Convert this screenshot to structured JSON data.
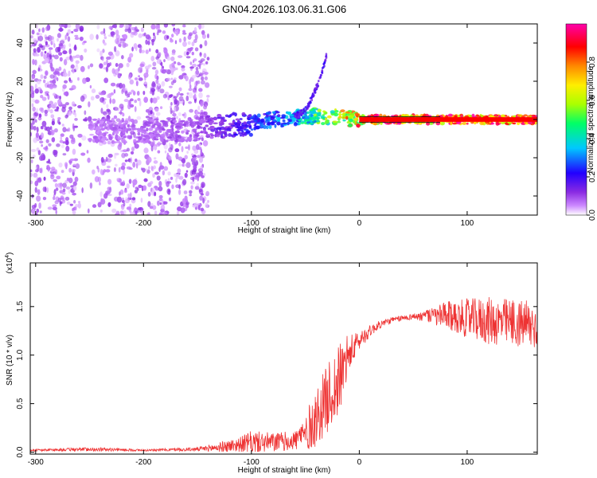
{
  "title": "GN04.2026.103.06.31.G06",
  "chart_data": [
    {
      "type": "heatmap",
      "name": "spectrogram",
      "xlabel": "Height of straight line (km)",
      "ylabel": "Frequency (Hz)",
      "xlim": [
        -305,
        165
      ],
      "ylim": [
        -50,
        50
      ],
      "x_ticks": [
        -300,
        -200,
        -100,
        0,
        100
      ],
      "x_tick_labels": [
        "-300",
        "-200",
        "-100",
        "0",
        "100"
      ],
      "y_ticks": [
        -40,
        -20,
        0,
        20,
        40
      ],
      "y_tick_labels": [
        "-40",
        "-20",
        "0",
        "20",
        "40"
      ],
      "colorbar": {
        "label": "Normalized spectral amplitude",
        "range": [
          0,
          1
        ],
        "ticks": [
          0.0,
          0.2,
          0.4,
          0.6,
          0.8
        ],
        "tick_labels": [
          "0.0",
          "0.2",
          "0.4",
          "0.6",
          "0.8"
        ],
        "colors": [
          "#ffffff",
          "#cc88ff",
          "#8a2be2",
          "#2200ff",
          "#00c8ff",
          "#00ff66",
          "#aaff00",
          "#ffee00",
          "#ff8800",
          "#ff0000",
          "#ff00aa"
        ]
      },
      "ridge": {
        "x": [
          -250,
          -200,
          -150,
          -120,
          -100,
          -80,
          -60,
          -40,
          -20,
          0,
          165
        ],
        "y": [
          -6,
          -6,
          -5,
          -3,
          -2,
          0,
          1,
          2,
          1,
          0,
          0
        ]
      },
      "ridge_amplitude": {
        "x": [
          -305,
          -150,
          -110,
          -60,
          -30,
          0,
          20,
          165
        ],
        "v": [
          0.05,
          0.1,
          0.2,
          0.35,
          0.55,
          0.8,
          0.9,
          0.85
        ]
      }
    },
    {
      "type": "line",
      "name": "snr",
      "xlabel": "Height of straight line (km)",
      "ylabel": "SNR (10 * v/v)",
      "multiplier_label": "(x10",
      "multiplier_exp": "4",
      "xlim": [
        -305,
        165
      ],
      "ylim": [
        -0.02,
        1.95
      ],
      "x_ticks": [
        -300,
        -200,
        -100,
        0,
        100
      ],
      "x_tick_labels": [
        "-300",
        "-200",
        "-100",
        "0",
        "100"
      ],
      "y_ticks": [
        0.0,
        0.5,
        1.0,
        1.5
      ],
      "y_tick_labels": [
        "0.0",
        "0.5",
        "1.0",
        "1.5"
      ],
      "color": "#ee3333",
      "envelope": {
        "x": [
          -305,
          -250,
          -200,
          -150,
          -130,
          -110,
          -100,
          -80,
          -60,
          -50,
          -40,
          -30,
          -20,
          -15,
          -10,
          0,
          10,
          20,
          30,
          40,
          50,
          60,
          70,
          80,
          100,
          120,
          140,
          165
        ],
        "mean": [
          0.02,
          0.03,
          0.02,
          0.03,
          0.05,
          0.08,
          0.1,
          0.1,
          0.12,
          0.2,
          0.35,
          0.55,
          0.7,
          0.85,
          1.0,
          1.15,
          1.25,
          1.32,
          1.36,
          1.38,
          1.4,
          1.4,
          1.4,
          1.4,
          1.38,
          1.35,
          1.33,
          1.3
        ],
        "noise": [
          0.01,
          0.02,
          0.01,
          0.02,
          0.05,
          0.08,
          0.12,
          0.1,
          0.1,
          0.2,
          0.3,
          0.35,
          0.4,
          0.3,
          0.2,
          0.1,
          0.06,
          0.04,
          0.03,
          0.03,
          0.03,
          0.06,
          0.1,
          0.15,
          0.2,
          0.25,
          0.25,
          0.25
        ]
      }
    }
  ]
}
